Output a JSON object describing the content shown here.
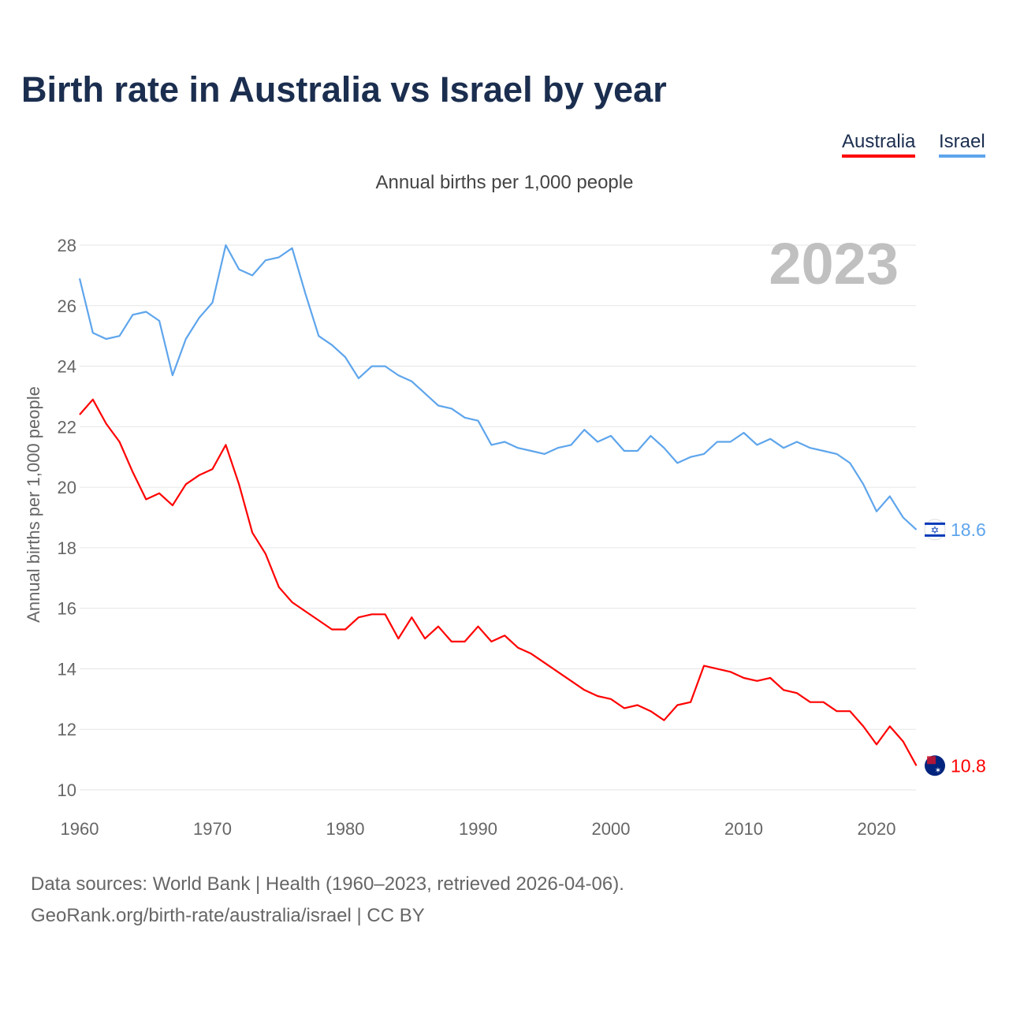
{
  "title": "Birth rate in Australia vs Israel by year",
  "subtitle": "Annual births per 1,000 people",
  "legend": {
    "australia": "Australia",
    "israel": "Israel"
  },
  "year_watermark": "2023",
  "footer": {
    "line1": "Data sources: World Bank | Health (1960–2023, retrieved 2026-04-06).",
    "line2": "GeoRank.org/birth-rate/australia/israel | CC BY"
  },
  "chart_data": {
    "type": "line",
    "title": "Birth rate in Australia vs Israel by year",
    "ylabel": "Annual births per 1,000 people",
    "xlabel": "",
    "ylim": [
      10,
      28
    ],
    "xlim": [
      1960,
      2023
    ],
    "yticks": [
      10,
      12,
      14,
      16,
      18,
      20,
      22,
      24,
      26,
      28
    ],
    "xticks": [
      1960,
      1970,
      1980,
      1990,
      2000,
      2010,
      2020
    ],
    "grid": true,
    "legend_position": "top-right",
    "x": [
      1960,
      1961,
      1962,
      1963,
      1964,
      1965,
      1966,
      1967,
      1968,
      1969,
      1970,
      1971,
      1972,
      1973,
      1974,
      1975,
      1976,
      1977,
      1978,
      1979,
      1980,
      1981,
      1982,
      1983,
      1984,
      1985,
      1986,
      1987,
      1988,
      1989,
      1990,
      1991,
      1992,
      1993,
      1994,
      1995,
      1996,
      1997,
      1998,
      1999,
      2000,
      2001,
      2002,
      2003,
      2004,
      2005,
      2006,
      2007,
      2008,
      2009,
      2010,
      2011,
      2012,
      2013,
      2014,
      2015,
      2016,
      2017,
      2018,
      2019,
      2020,
      2021,
      2022,
      2023
    ],
    "series": [
      {
        "name": "Australia",
        "color": "#ff0000",
        "end_label": "10.8",
        "flag": "australia-flag",
        "values": [
          22.4,
          22.9,
          22.1,
          21.5,
          20.5,
          19.6,
          19.8,
          19.4,
          20.1,
          20.4,
          20.6,
          21.4,
          20.1,
          18.5,
          17.8,
          16.7,
          16.2,
          15.9,
          15.6,
          15.3,
          15.3,
          15.7,
          15.8,
          15.8,
          15.0,
          15.7,
          15.0,
          15.4,
          14.9,
          14.9,
          15.4,
          14.9,
          15.1,
          14.7,
          14.5,
          14.2,
          13.9,
          13.6,
          13.3,
          13.1,
          13.0,
          12.7,
          12.8,
          12.6,
          12.3,
          12.8,
          12.9,
          14.1,
          14.0,
          13.9,
          13.7,
          13.6,
          13.7,
          13.3,
          13.2,
          12.9,
          12.9,
          12.6,
          12.6,
          12.1,
          11.5,
          12.1,
          11.6,
          10.8
        ]
      },
      {
        "name": "Israel",
        "color": "#5ea5ec",
        "end_label": "18.6",
        "flag": "israel-flag",
        "values": [
          26.9,
          25.1,
          24.9,
          25.0,
          25.7,
          25.8,
          25.5,
          23.7,
          24.9,
          25.6,
          26.1,
          28.0,
          27.2,
          27.0,
          27.5,
          27.6,
          27.9,
          26.4,
          25.0,
          24.7,
          24.3,
          23.6,
          24.0,
          24.0,
          23.7,
          23.5,
          23.1,
          22.7,
          22.6,
          22.3,
          22.2,
          21.4,
          21.5,
          21.3,
          21.2,
          21.1,
          21.3,
          21.4,
          21.9,
          21.5,
          21.7,
          21.2,
          21.2,
          21.7,
          21.3,
          20.8,
          21.0,
          21.1,
          21.5,
          21.5,
          21.8,
          21.4,
          21.6,
          21.3,
          21.5,
          21.3,
          21.2,
          21.1,
          20.8,
          20.1,
          19.2,
          19.7,
          19.0,
          18.6
        ]
      }
    ]
  }
}
